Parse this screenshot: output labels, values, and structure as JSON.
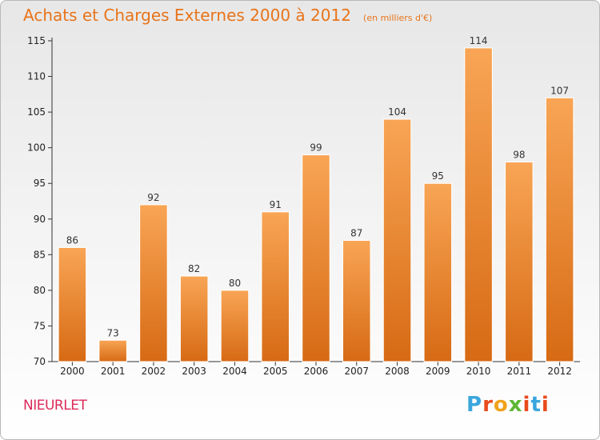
{
  "page": {
    "title": "Achats et Charges Externes 2000 à 2012",
    "subtitle": "(en milliers d'€)",
    "commune": "NIEURLET",
    "logo_text": "Proxiti"
  },
  "colors": {
    "title": "#e8741a",
    "commune": "#dc2a5a",
    "bar_top": "#f8a555",
    "bar_bottom": "#d76a14",
    "logo": [
      "#3aa6dd",
      "#e84a1e",
      "#f0a21a",
      "#5fb833",
      "#e84a1e",
      "#3aa6dd",
      "#e84a1e"
    ]
  },
  "chart_data": {
    "type": "bar",
    "title": "Achats et Charges Externes 2000 à 2012",
    "subtitle": "(en milliers d'€)",
    "categories": [
      "2000",
      "2001",
      "2002",
      "2003",
      "2004",
      "2005",
      "2006",
      "2007",
      "2008",
      "2009",
      "2010",
      "2011",
      "2012"
    ],
    "values": [
      86,
      73,
      92,
      82,
      80,
      91,
      99,
      87,
      104,
      95,
      114,
      98,
      107
    ],
    "ylim": [
      70,
      115
    ],
    "yticks": [
      70,
      75,
      80,
      85,
      90,
      95,
      100,
      105,
      110,
      115
    ],
    "xlabel": "",
    "ylabel": "",
    "grid": false,
    "data_labels": true
  }
}
